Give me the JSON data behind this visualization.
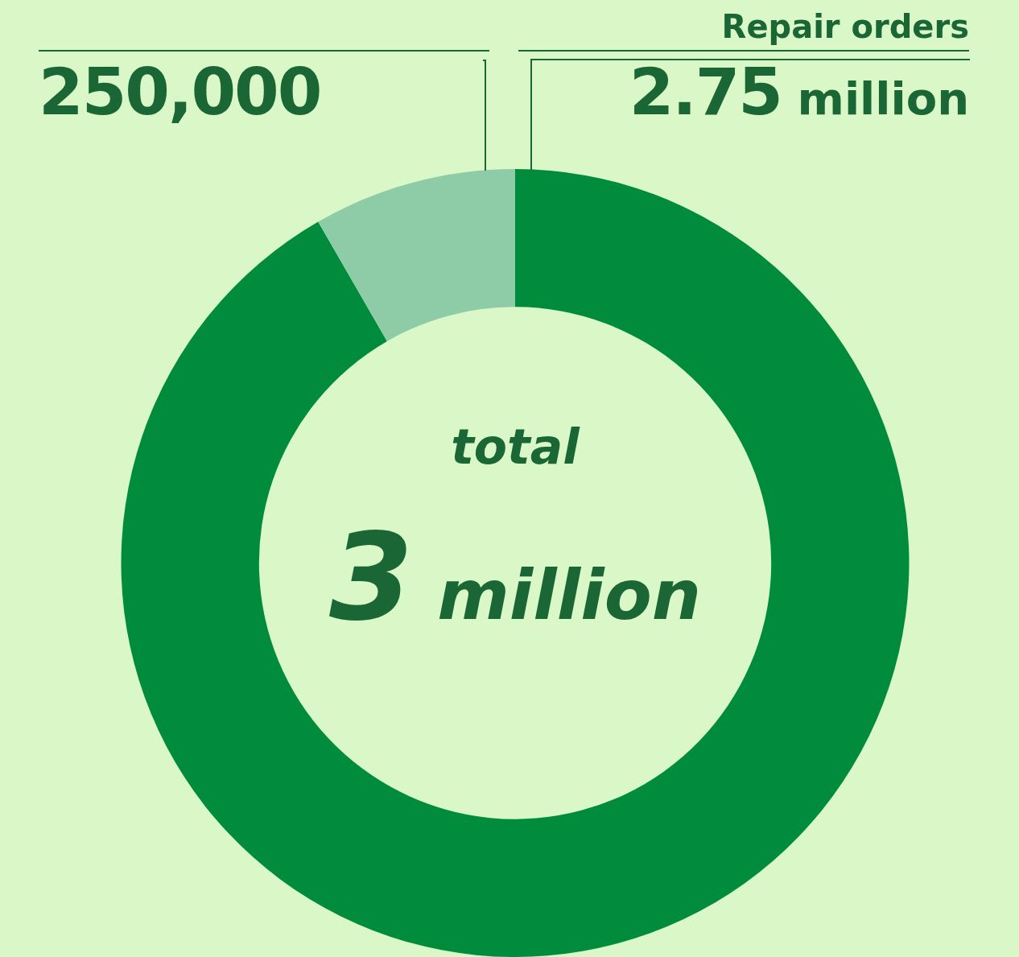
{
  "chart_data": {
    "type": "donut",
    "categories": [
      "Repair orders",
      null
    ],
    "values": [
      2750000,
      250000
    ],
    "value_labels": [
      "2.75 million",
      "250,000"
    ],
    "colors": [
      "#008c3c",
      "#8ecca8"
    ],
    "annotations": [
      "total",
      "3 million"
    ],
    "legend": false
  }
}
